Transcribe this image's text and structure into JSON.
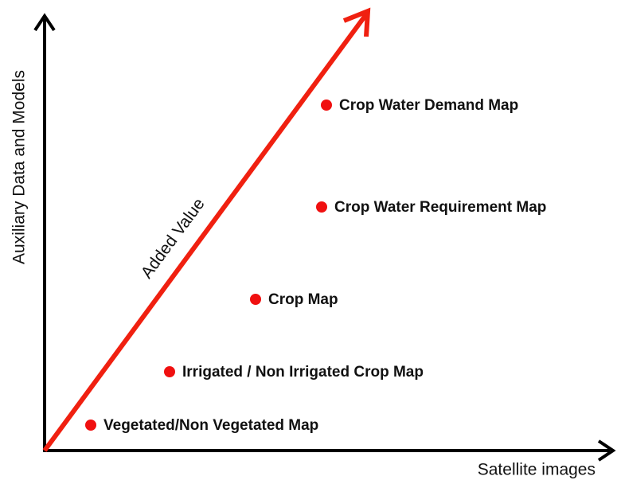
{
  "axes": {
    "x_label": "Satellite images",
    "y_label": "Auxiliary Data and Models"
  },
  "arrow": {
    "label": "Added Value"
  },
  "points": [
    {
      "label": "Vegetated/Non Vegetated Map"
    },
    {
      "label": "Irrigated / Non Irrigated Crop Map"
    },
    {
      "label": "Crop Map"
    },
    {
      "label": "Crop Water Requirement Map"
    },
    {
      "label": "Crop Water Demand Map"
    }
  ]
}
